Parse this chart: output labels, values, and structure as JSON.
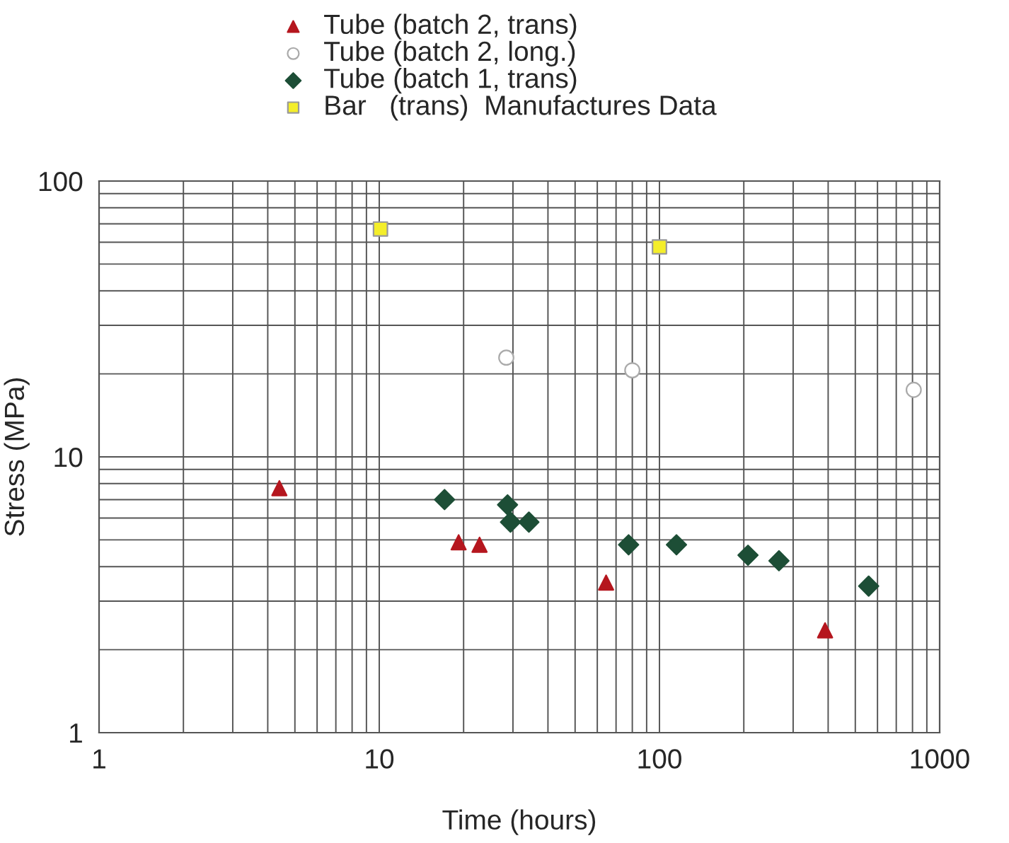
{
  "chart_data": {
    "type": "scatter",
    "xlabel": "Time (hours)",
    "ylabel": "Stress (MPa)",
    "log": "xy",
    "grid": true,
    "legend": "top",
    "xlim": [
      1,
      1000
    ],
    "ylim": [
      1,
      100
    ],
    "xticks": [
      1,
      10,
      100,
      1000
    ],
    "yticks": [
      1,
      10,
      100
    ],
    "series": [
      {
        "name": "Tube (batch 2, trans)",
        "color": "#b5161e",
        "marker": "triangle",
        "x": [
          4.4,
          19.2,
          22.8,
          64.5,
          390
        ],
        "values": [
          7.7,
          4.9,
          4.8,
          3.5,
          2.35
        ]
      },
      {
        "name": "Tube (batch 2, long.)",
        "color": "#ffffff",
        "marker": "circle",
        "x": [
          28.4,
          80,
          808
        ],
        "values": [
          22.9,
          20.6,
          17.5
        ]
      },
      {
        "name": "Tube (batch 1, trans)",
        "color": "#1d4e36",
        "marker": "diamond",
        "x": [
          17.1,
          28.7,
          29.4,
          34.2,
          77.6,
          115,
          207,
          267,
          558
        ],
        "values": [
          7.0,
          6.7,
          5.8,
          5.8,
          4.8,
          4.8,
          4.4,
          4.2,
          3.4
        ]
      },
      {
        "name": "Bar   (trans)  Manufactures Data",
        "color": "#f4ee2a",
        "marker": "square",
        "x": [
          10.1,
          100
        ],
        "values": [
          67,
          57.7
        ]
      }
    ]
  }
}
